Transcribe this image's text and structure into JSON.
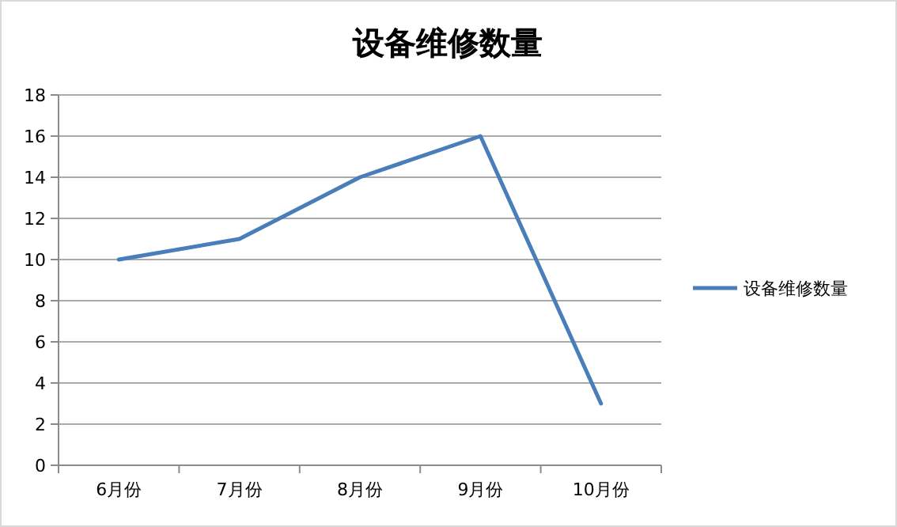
{
  "chart_data": {
    "type": "line",
    "title": "设备维修数量",
    "categories": [
      "6月份",
      "7月份",
      "8月份",
      "9月份",
      "10月份"
    ],
    "series": [
      {
        "name": "设备维修数量",
        "color": "#4a7ebb",
        "values": [
          10,
          11,
          14,
          16,
          3
        ]
      }
    ],
    "ylim": [
      0,
      18
    ],
    "yticks": [
      0,
      2,
      4,
      6,
      8,
      10,
      12,
      14,
      16,
      18
    ],
    "grid": "y",
    "legend": "right",
    "marker": "none",
    "line_style": "solid"
  }
}
